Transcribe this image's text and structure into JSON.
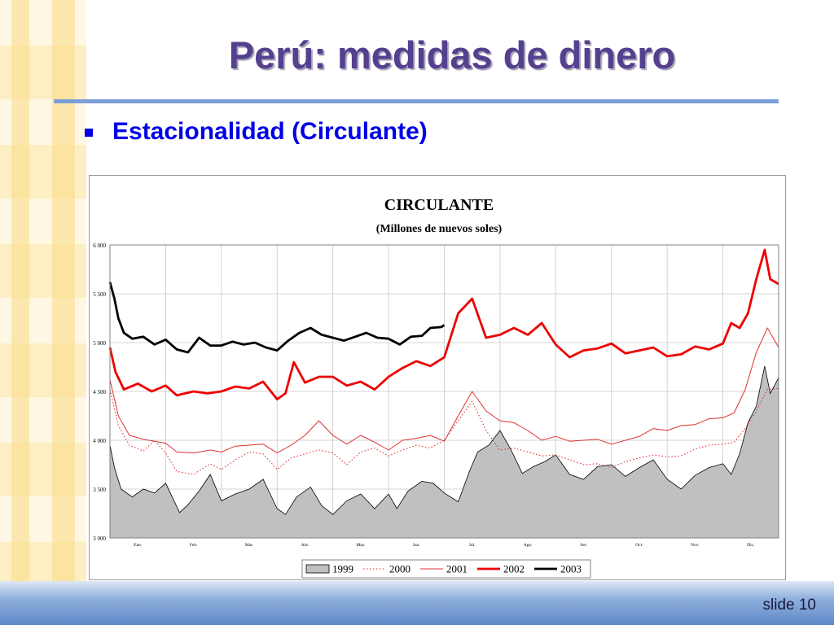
{
  "slide": {
    "title": "Perú: medidas de dinero",
    "bullet": "Estacionalidad (Circulante)",
    "slide_number": "slide 10"
  },
  "colors": {
    "title": "#55408f",
    "bullet": "#0000e6",
    "rule": "#7d9fd8",
    "area_1999": "#c0c0c0",
    "line_2000": "#e03030",
    "line_2001": "#e03030",
    "line_2002": "#ee0000",
    "line_2003": "#000000"
  },
  "chart_data": {
    "type": "line",
    "title": "CIRCULANTE",
    "subtitle": "(Millones de nuevos soles)",
    "xlabel": "",
    "ylabel": "",
    "ylim": [
      3000,
      6000
    ],
    "yticks": [
      "3 000",
      "3 500",
      "4 000",
      "4 500",
      "5 000",
      "5 500",
      "6 000"
    ],
    "xlim": [
      0,
      12
    ],
    "months": [
      "Ene.",
      "Feb.",
      "Mar.",
      "Abr.",
      "May.",
      "Jun.",
      "Jul.",
      "Ago.",
      "Set.",
      "Oct.",
      "Nov.",
      "Dic."
    ],
    "grid": true,
    "legend_position": "bottom",
    "series": [
      {
        "name": "1999",
        "style": "area",
        "x": [
          0,
          0.08,
          0.2,
          0.4,
          0.6,
          0.8,
          1,
          1.25,
          1.4,
          1.6,
          1.8,
          2,
          2.25,
          2.5,
          2.75,
          3,
          3.15,
          3.35,
          3.6,
          3.8,
          4,
          4.25,
          4.5,
          4.75,
          5,
          5.15,
          5.35,
          5.6,
          5.8,
          6,
          6.25,
          6.45,
          6.6,
          6.8,
          7,
          7.2,
          7.4,
          7.6,
          7.8,
          8,
          8.25,
          8.5,
          8.75,
          9,
          9.25,
          9.5,
          9.75,
          10,
          10.25,
          10.5,
          10.75,
          11,
          11.15,
          11.3,
          11.45,
          11.6,
          11.75,
          11.85,
          12
        ],
        "values": [
          3950,
          3720,
          3500,
          3420,
          3500,
          3460,
          3560,
          3260,
          3340,
          3480,
          3650,
          3380,
          3450,
          3500,
          3600,
          3300,
          3240,
          3420,
          3520,
          3330,
          3240,
          3380,
          3450,
          3300,
          3450,
          3300,
          3480,
          3580,
          3560,
          3460,
          3370,
          3680,
          3880,
          3950,
          4100,
          3900,
          3660,
          3730,
          3780,
          3850,
          3650,
          3600,
          3730,
          3750,
          3630,
          3720,
          3800,
          3600,
          3500,
          3640,
          3720,
          3760,
          3650,
          3860,
          4180,
          4350,
          4760,
          4480,
          4640
        ]
      },
      {
        "name": "2000",
        "style": "dotted",
        "x": [
          0,
          0.15,
          0.35,
          0.6,
          0.8,
          1,
          1.2,
          1.5,
          1.8,
          2,
          2.25,
          2.5,
          2.75,
          3,
          3.25,
          3.5,
          3.75,
          4,
          4.25,
          4.5,
          4.75,
          5,
          5.25,
          5.5,
          5.75,
          6,
          6.25,
          6.5,
          6.75,
          7,
          7.25,
          7.5,
          7.75,
          8,
          8.25,
          8.5,
          8.75,
          9,
          9.25,
          9.5,
          9.75,
          10,
          10.25,
          10.5,
          10.75,
          11,
          11.2,
          11.4,
          11.6,
          11.8,
          12
        ],
        "values": [
          4520,
          4150,
          3950,
          3890,
          4000,
          3870,
          3680,
          3650,
          3760,
          3700,
          3800,
          3880,
          3860,
          3700,
          3820,
          3860,
          3900,
          3870,
          3750,
          3880,
          3920,
          3840,
          3900,
          3950,
          3920,
          4000,
          4200,
          4400,
          4100,
          3900,
          3920,
          3880,
          3840,
          3850,
          3800,
          3750,
          3760,
          3720,
          3780,
          3820,
          3850,
          3830,
          3840,
          3910,
          3950,
          3960,
          3980,
          4120,
          4300,
          4520,
          4530
        ]
      },
      {
        "name": "2001",
        "style": "thin",
        "x": [
          0,
          0.15,
          0.35,
          0.6,
          0.8,
          1,
          1.2,
          1.5,
          1.8,
          2,
          2.25,
          2.5,
          2.75,
          3,
          3.25,
          3.5,
          3.75,
          4,
          4.25,
          4.5,
          4.75,
          5,
          5.25,
          5.5,
          5.75,
          6,
          6.25,
          6.5,
          6.75,
          7,
          7.25,
          7.5,
          7.75,
          8,
          8.25,
          8.5,
          8.75,
          9,
          9.25,
          9.5,
          9.75,
          10,
          10.25,
          10.5,
          10.75,
          11,
          11.2,
          11.4,
          11.6,
          11.8,
          12
        ],
        "values": [
          4620,
          4250,
          4050,
          4010,
          3990,
          3970,
          3880,
          3870,
          3900,
          3880,
          3940,
          3950,
          3960,
          3870,
          3950,
          4050,
          4200,
          4050,
          3960,
          4050,
          3980,
          3900,
          4000,
          4020,
          4050,
          3990,
          4250,
          4500,
          4300,
          4200,
          4180,
          4100,
          4000,
          4040,
          3990,
          4000,
          4010,
          3960,
          4000,
          4040,
          4120,
          4100,
          4150,
          4160,
          4220,
          4230,
          4280,
          4520,
          4900,
          5150,
          4950
        ]
      },
      {
        "name": "2002",
        "style": "thick",
        "x": [
          0,
          0.1,
          0.25,
          0.5,
          0.75,
          1,
          1.2,
          1.5,
          1.75,
          2,
          2.25,
          2.5,
          2.75,
          3,
          3.15,
          3.3,
          3.5,
          3.75,
          4,
          4.25,
          4.5,
          4.75,
          5,
          5.25,
          5.5,
          5.75,
          6,
          6.25,
          6.5,
          6.75,
          7,
          7.25,
          7.5,
          7.75,
          8,
          8.25,
          8.5,
          8.75,
          9,
          9.25,
          9.5,
          9.75,
          10,
          10.25,
          10.5,
          10.75,
          11,
          11.15,
          11.3,
          11.45,
          11.6,
          11.75,
          11.85,
          12
        ],
        "values": [
          4950,
          4700,
          4520,
          4580,
          4500,
          4560,
          4460,
          4500,
          4480,
          4500,
          4550,
          4530,
          4600,
          4420,
          4480,
          4800,
          4590,
          4650,
          4650,
          4560,
          4600,
          4520,
          4650,
          4740,
          4810,
          4760,
          4850,
          5300,
          5450,
          5050,
          5080,
          5150,
          5080,
          5200,
          4980,
          4850,
          4920,
          4940,
          4990,
          4890,
          4920,
          4950,
          4860,
          4880,
          4960,
          4930,
          4990,
          5200,
          5150,
          5300,
          5650,
          5950,
          5650,
          5600
        ]
      },
      {
        "name": "2003",
        "style": "thick-black",
        "x": [
          0,
          0.08,
          0.15,
          0.25,
          0.4,
          0.6,
          0.8,
          1,
          1.2,
          1.4,
          1.6,
          1.8,
          2,
          2.2,
          2.4,
          2.6,
          2.8,
          3,
          3.2,
          3.4,
          3.6,
          3.8,
          4,
          4.2,
          4.4,
          4.6,
          4.8,
          5,
          5.2,
          5.4,
          5.6,
          5.75,
          5.95,
          6
        ],
        "values": [
          5620,
          5450,
          5250,
          5100,
          5040,
          5060,
          4980,
          5030,
          4930,
          4900,
          5050,
          4970,
          4970,
          5010,
          4980,
          5000,
          4950,
          4920,
          5020,
          5100,
          5150,
          5080,
          5050,
          5020,
          5060,
          5100,
          5050,
          5040,
          4980,
          5060,
          5070,
          5150,
          5160,
          5180
        ]
      }
    ]
  }
}
